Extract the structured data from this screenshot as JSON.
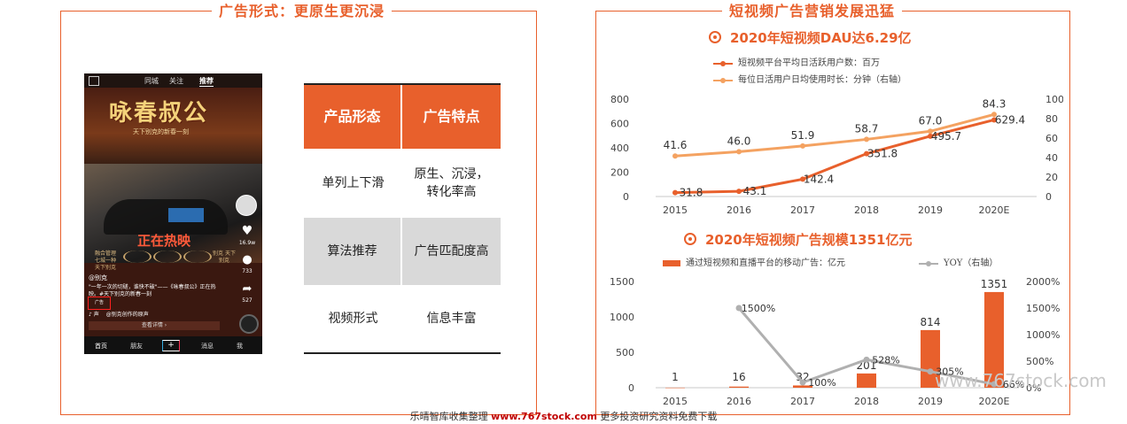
{
  "left_panel": {
    "title": "广告形式：更原生更沉浸",
    "phone": {
      "top_tabs": [
        "同城",
        "关注",
        "推荐"
      ],
      "poster_title": "咏春叔公",
      "poster_subtitle": "天下别克的新春一刻",
      "now_showing": "正在热映",
      "laurels": [
        "融合管理 七城一种 天下别克",
        "",
        "",
        "",
        "别克 天下别克"
      ],
      "like_count": "16.9w",
      "comment_count": "733",
      "share_count": "527",
      "user_name": "@别克",
      "description": "\"一年一次的切磋，谁快不破\"——《咏春叔公》正在热映。#天下别克的新春一刻",
      "ad_tag": "广告",
      "music_label": "声",
      "music_text": "@别克创作的原声",
      "detail_button": "查看详情 ›",
      "nav": [
        "首页",
        "朋友",
        "+",
        "消息",
        "我"
      ]
    },
    "table": {
      "headers": [
        "产品形态",
        "广告特点"
      ],
      "rows": [
        [
          "单列上下滑",
          "原生、沉浸，转化率高"
        ],
        [
          "算法推荐",
          "广告匹配度高"
        ],
        [
          "视频形式",
          "信息丰富"
        ]
      ]
    }
  },
  "right_panel": {
    "title": "短视频广告营销发展迅猛",
    "chart1_heading": "2020年短视频DAU达6.29亿",
    "chart2_heading": "2020年短视频广告规模1351亿元",
    "colors": {
      "accent": "#e8602c",
      "accent_light": "#f4a261",
      "gray": "#b0b0b0"
    }
  },
  "chart_data": [
    {
      "type": "line",
      "title": "2020年短视频DAU达6.29亿",
      "categories": [
        "2015",
        "2016",
        "2017",
        "2018",
        "2019",
        "2020E"
      ],
      "series": [
        {
          "name": "短视频平台平均日活跃用户数：百万",
          "axis": "left",
          "values": [
            31.8,
            43.1,
            142.4,
            351.8,
            495.7,
            629.4
          ],
          "labels": [
            "31.8",
            "43.1",
            "142.4",
            "351.8",
            "495.7",
            "629.4"
          ]
        },
        {
          "name": "每位日活用户日均使用时长：分钟（右轴）",
          "axis": "right",
          "values": [
            41.6,
            46.0,
            51.9,
            58.7,
            67.0,
            84.3
          ],
          "labels": [
            "41.6",
            "46.0",
            "51.9",
            "58.7",
            "67.0",
            "84.3"
          ]
        }
      ],
      "ylim_left": [
        0,
        800
      ],
      "yticks_left": [
        "0",
        "200",
        "400",
        "600",
        "800"
      ],
      "ylim_right": [
        0,
        100
      ],
      "yticks_right": [
        "0",
        "20",
        "40",
        "60",
        "80",
        "100"
      ]
    },
    {
      "type": "bar",
      "title": "2020年短视频广告规模1351亿元",
      "categories": [
        "2015",
        "2016",
        "2017",
        "2018",
        "2019",
        "2020E"
      ],
      "series": [
        {
          "name": "通过短视频和直播平台的移动广告：亿元",
          "axis": "left",
          "values": [
            1,
            16,
            32,
            201,
            814,
            1351
          ],
          "labels": [
            "1",
            "16",
            "32",
            "201",
            "814",
            "1351"
          ]
        },
        {
          "name": "YOY（右轴）",
          "axis": "right",
          "type": "line",
          "values": [
            null,
            1500,
            100,
            528,
            305,
            66
          ],
          "labels": [
            "",
            "1500%",
            "100%",
            "528%",
            "305%",
            "66%"
          ]
        }
      ],
      "ylim_left": [
        0,
        1500
      ],
      "yticks_left": [
        "0",
        "500",
        "1000",
        "1500"
      ],
      "ylim_right": [
        0,
        2000
      ],
      "yticks_right": [
        "0%",
        "500%",
        "1000%",
        "1500%",
        "2000%"
      ]
    }
  ],
  "footer": {
    "prefix": "乐晴智库收集整理 ",
    "brand": "www.767stock.com",
    "suffix": " 更多投资研究资料免费下载"
  },
  "watermark": "www.767stock.com"
}
